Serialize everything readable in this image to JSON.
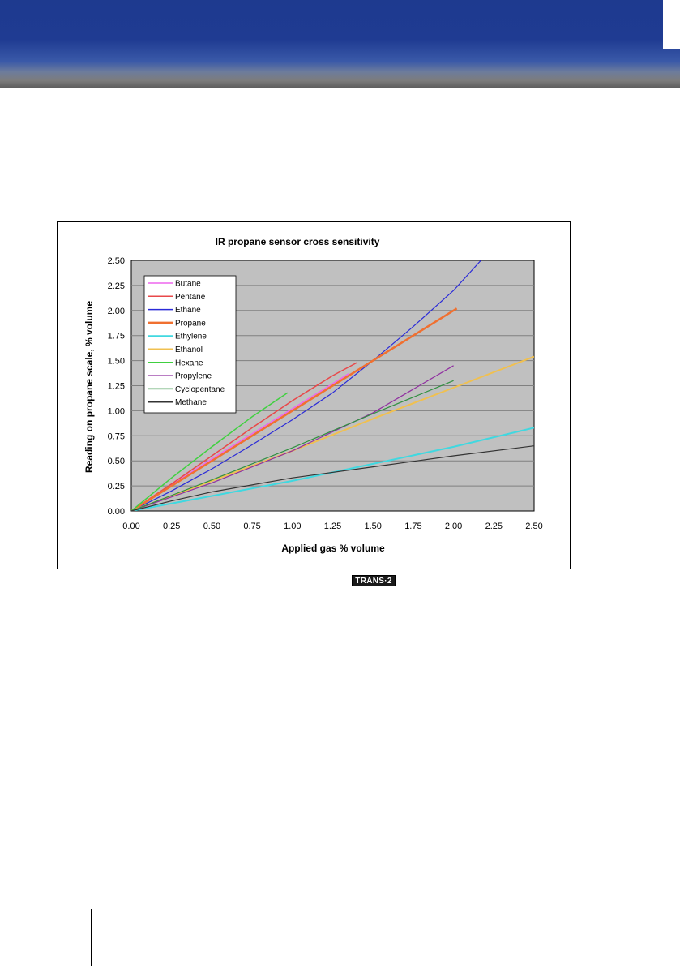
{
  "chart_data": {
    "type": "line",
    "title": "IR propane sensor cross sensitivity",
    "xlabel": "Applied gas % volume",
    "ylabel": "Reading on propane scale, % volume",
    "xlim": [
      0,
      2.5
    ],
    "ylim": [
      0,
      2.5
    ],
    "xticks": [
      "0.00",
      "0.25",
      "0.50",
      "0.75",
      "1.00",
      "1.25",
      "1.50",
      "1.75",
      "2.00",
      "2.25",
      "2.50"
    ],
    "yticks": [
      "0.00",
      "0.25",
      "0.50",
      "0.75",
      "1.00",
      "1.25",
      "1.50",
      "1.75",
      "2.00",
      "2.25",
      "2.50"
    ],
    "grid": true,
    "legend_position": "top-left",
    "plot_background": "#c0c0c0",
    "series": [
      {
        "name": "Butane",
        "color": "#ee66ee",
        "width": 1.5,
        "x": [
          0,
          0.25,
          0.5,
          0.75,
          1.0,
          1.25,
          1.35
        ],
        "y": [
          0,
          0.26,
          0.52,
          0.77,
          1.02,
          1.27,
          1.37
        ]
      },
      {
        "name": "Pentane",
        "color": "#e8484a",
        "width": 1.5,
        "x": [
          0,
          0.25,
          0.5,
          0.75,
          1.0,
          1.25,
          1.4
        ],
        "y": [
          0,
          0.27,
          0.55,
          0.83,
          1.1,
          1.35,
          1.48
        ]
      },
      {
        "name": "Ethane",
        "color": "#2a2ad8",
        "width": 1.2,
        "x": [
          0,
          0.25,
          0.5,
          0.75,
          1.0,
          1.25,
          1.5,
          1.75,
          2.0,
          2.17
        ],
        "y": [
          0,
          0.2,
          0.42,
          0.66,
          0.91,
          1.18,
          1.5,
          1.84,
          2.2,
          2.5
        ]
      },
      {
        "name": "Propane",
        "color": "#f07030",
        "width": 2.5,
        "x": [
          0,
          0.5,
          1.0,
          1.5,
          2.0,
          2.02
        ],
        "y": [
          0,
          0.5,
          1.0,
          1.5,
          2.0,
          2.02
        ]
      },
      {
        "name": "Ethylene",
        "color": "#40d8e0",
        "width": 2,
        "x": [
          0,
          0.5,
          1.0,
          1.5,
          2.0,
          2.5
        ],
        "y": [
          0,
          0.15,
          0.3,
          0.47,
          0.64,
          0.83
        ]
      },
      {
        "name": "Ethanol",
        "color": "#f0c050",
        "width": 2,
        "x": [
          0,
          0.5,
          1.0,
          1.5,
          2.0,
          2.5
        ],
        "y": [
          0,
          0.3,
          0.6,
          0.92,
          1.23,
          1.54
        ]
      },
      {
        "name": "Hexane",
        "color": "#40d040",
        "width": 1.5,
        "x": [
          0,
          0.25,
          0.5,
          0.75,
          0.97
        ],
        "y": [
          0,
          0.33,
          0.64,
          0.94,
          1.18
        ]
      },
      {
        "name": "Propylene",
        "color": "#9030a0",
        "width": 1.2,
        "x": [
          0,
          0.5,
          1.0,
          1.5,
          2.0
        ],
        "y": [
          0,
          0.28,
          0.6,
          0.98,
          1.45
        ]
      },
      {
        "name": "Cyclopentane",
        "color": "#309040",
        "width": 1.2,
        "x": [
          0,
          0.5,
          1.0,
          1.5,
          2.0
        ],
        "y": [
          0,
          0.31,
          0.63,
          0.97,
          1.3
        ]
      },
      {
        "name": "Methane",
        "color": "#333333",
        "width": 1.2,
        "x": [
          0,
          0.25,
          0.5,
          1.0,
          1.5,
          2.0,
          2.5
        ],
        "y": [
          0,
          0.1,
          0.19,
          0.33,
          0.44,
          0.55,
          0.65
        ]
      }
    ]
  },
  "footer": {
    "logo_text": "TRANS·2"
  }
}
